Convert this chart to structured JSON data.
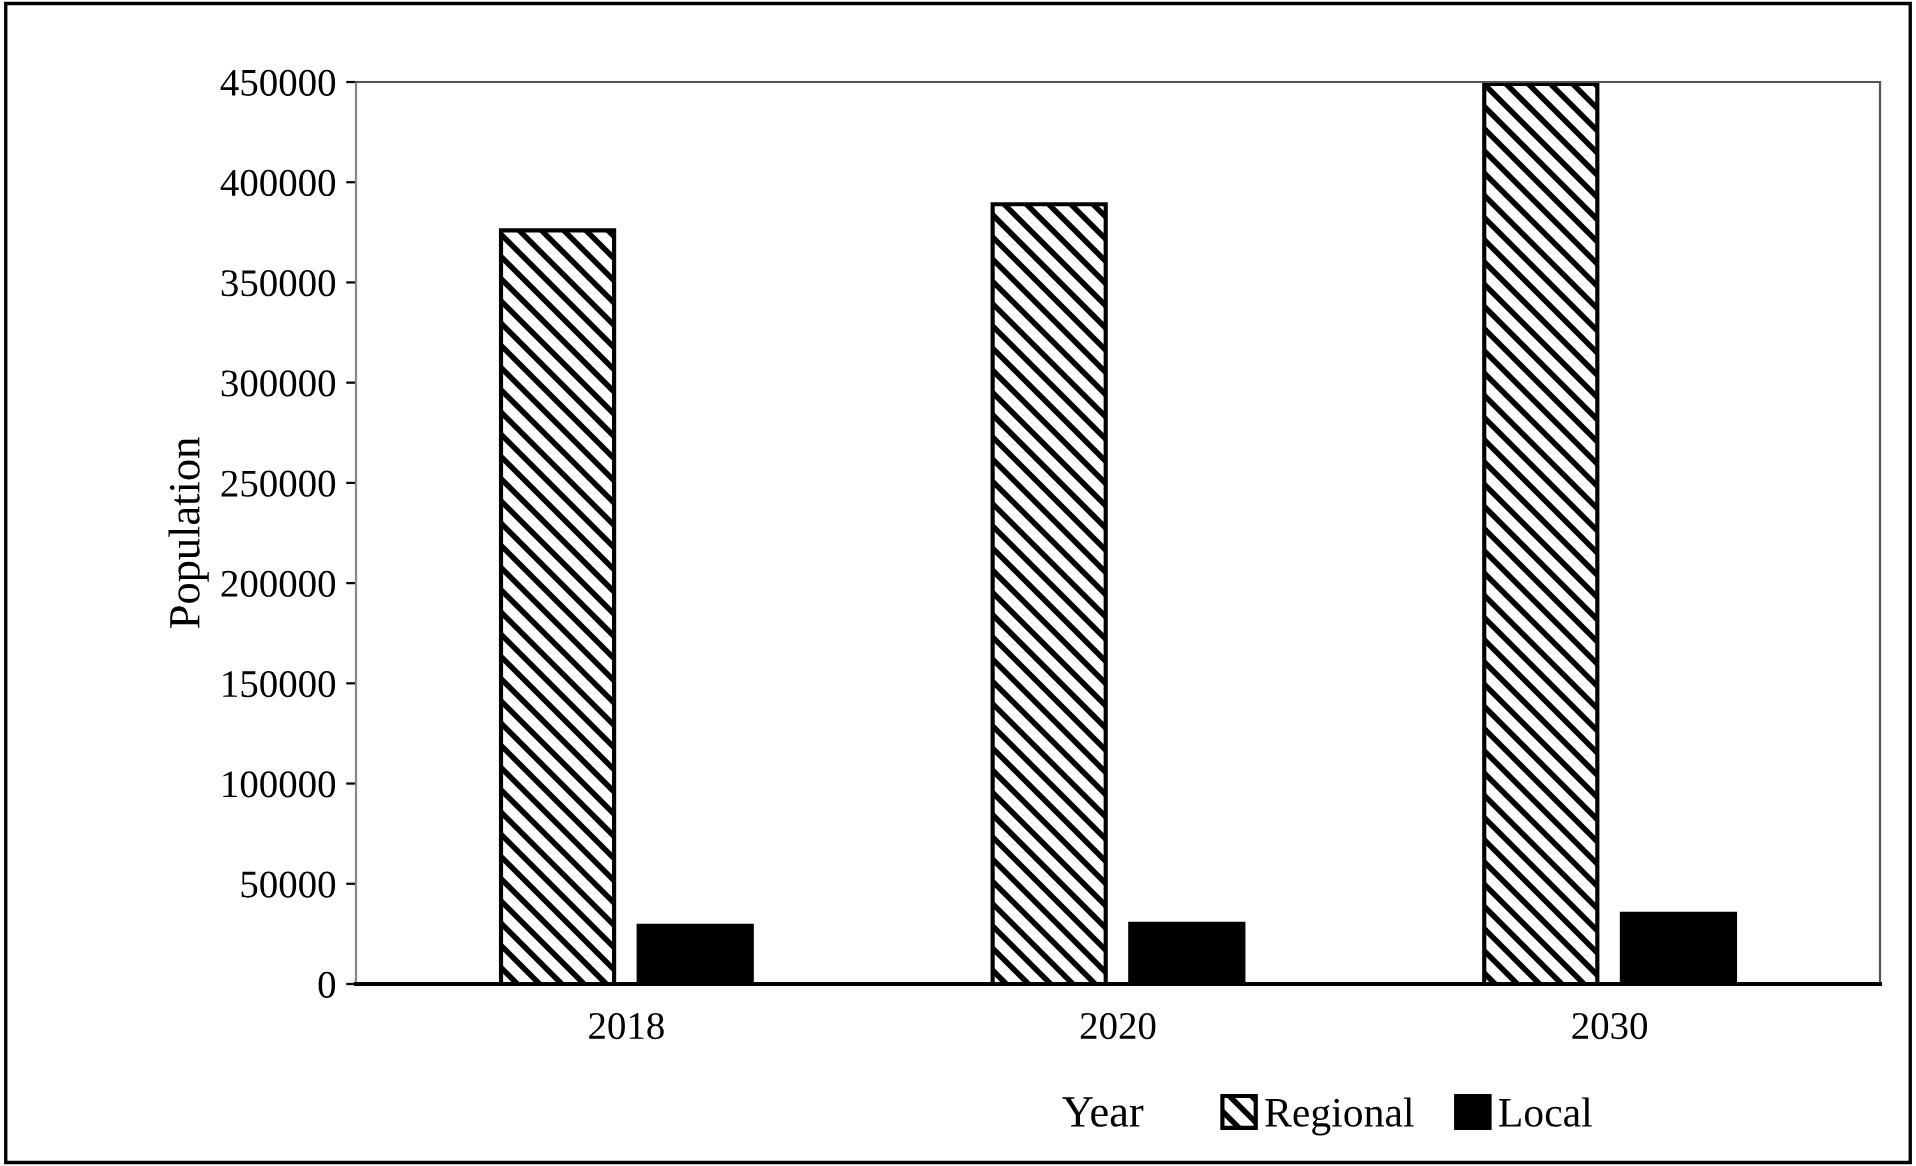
{
  "chart_data": {
    "type": "bar",
    "xlabel": "Year",
    "ylabel": "Population",
    "categories": [
      "2018",
      "2020",
      "2030"
    ],
    "series": [
      {
        "name": "Regional",
        "color": "#000000",
        "values": [
          376000,
          389000,
          449000
        ]
      },
      {
        "name": "Local",
        "color": "#000000",
        "values": [
          29000,
          30000,
          35000
        ]
      }
    ],
    "ylim": [
      0,
      450000
    ],
    "yticks": [
      0,
      50000,
      100000,
      150000,
      200000,
      250000,
      300000,
      350000,
      400000,
      450000
    ],
    "grid": false,
    "legend": "bottom"
  }
}
